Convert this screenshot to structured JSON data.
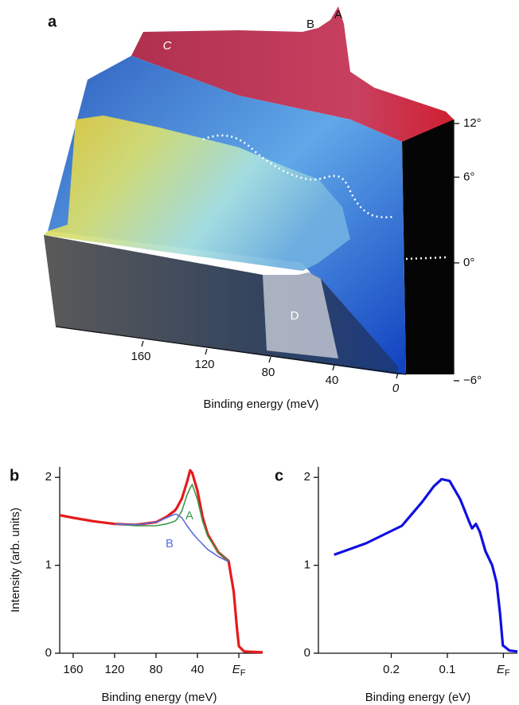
{
  "chart_data": [
    {
      "type": "surface",
      "panel": "a",
      "xlabel": "Binding energy (meV)",
      "xticks": [
        160,
        120,
        80,
        40,
        0
      ],
      "yticks": [
        {
          "value": 12,
          "label": "12°"
        },
        {
          "value": 6,
          "label": "6°"
        },
        {
          "value": 0,
          "label": "0°"
        },
        {
          "value": -6,
          "label": "−6°"
        }
      ],
      "annotations": [
        "A",
        "B",
        "C",
        "D"
      ]
    },
    {
      "type": "line",
      "panel": "b",
      "xlabel": "Binding energy  (meV)",
      "ylabel": "Intensity (arb. units)",
      "xlim": [
        173,
        -23
      ],
      "ylim": [
        0,
        2.12
      ],
      "xticks": [
        160,
        120,
        80,
        40,
        {
          "value": 0,
          "label": "EF"
        }
      ],
      "yticks": [
        0,
        1,
        2
      ],
      "x": [
        173,
        160,
        140,
        120,
        100,
        80,
        70,
        62,
        60,
        55,
        50,
        47,
        45,
        40,
        35,
        30,
        25,
        20,
        10,
        5,
        2,
        0,
        -5,
        -23
      ],
      "series": [
        {
          "color": "#e41a1c",
          "values": [
            1.57,
            1.54,
            1.5,
            1.47,
            1.46,
            1.49,
            1.55,
            1.62,
            1.65,
            1.76,
            1.95,
            2.08,
            2.05,
            1.85,
            1.55,
            1.35,
            1.25,
            1.15,
            1.05,
            0.7,
            0.3,
            0.08,
            0.02,
            0.01
          ]
        },
        {
          "name": "A",
          "color": "#3a9a4a",
          "values": [
            null,
            null,
            null,
            1.47,
            1.45,
            1.45,
            1.47,
            1.5,
            1.52,
            1.62,
            1.8,
            1.88,
            1.92,
            1.75,
            1.5,
            1.33,
            1.24,
            1.15,
            1.05,
            null,
            null,
            null,
            null,
            null
          ]
        },
        {
          "name": "B",
          "color": "#5a6ee0",
          "values": [
            null,
            null,
            null,
            1.47,
            1.46,
            1.49,
            1.54,
            1.58,
            1.58,
            1.54,
            1.45,
            1.4,
            1.37,
            1.3,
            1.24,
            1.18,
            1.14,
            1.1,
            1.04,
            null,
            null,
            null,
            null,
            null
          ]
        }
      ]
    },
    {
      "type": "line",
      "panel": "c",
      "xlabel": "Binding energy  (eV)",
      "xlim": [
        0.33,
        -0.025
      ],
      "ylim": [
        0,
        2.12
      ],
      "xticks": [
        0.2,
        0.1,
        {
          "value": 0,
          "label": "EF"
        }
      ],
      "yticks": [
        0,
        1,
        2
      ],
      "x": [
        0.302,
        0.245,
        0.181,
        0.145,
        0.124,
        0.11,
        0.096,
        0.077,
        0.06,
        0.056,
        0.049,
        0.042,
        0.032,
        0.02,
        0.012,
        0.006,
        0.001,
        -0.011,
        -0.025
      ],
      "series": [
        {
          "color": "#1010e0",
          "values": [
            1.12,
            1.25,
            1.45,
            1.72,
            1.9,
            1.98,
            1.96,
            1.75,
            1.48,
            1.42,
            1.47,
            1.38,
            1.16,
            1.0,
            0.8,
            0.45,
            0.09,
            0.03,
            0.02
          ]
        }
      ]
    }
  ]
}
